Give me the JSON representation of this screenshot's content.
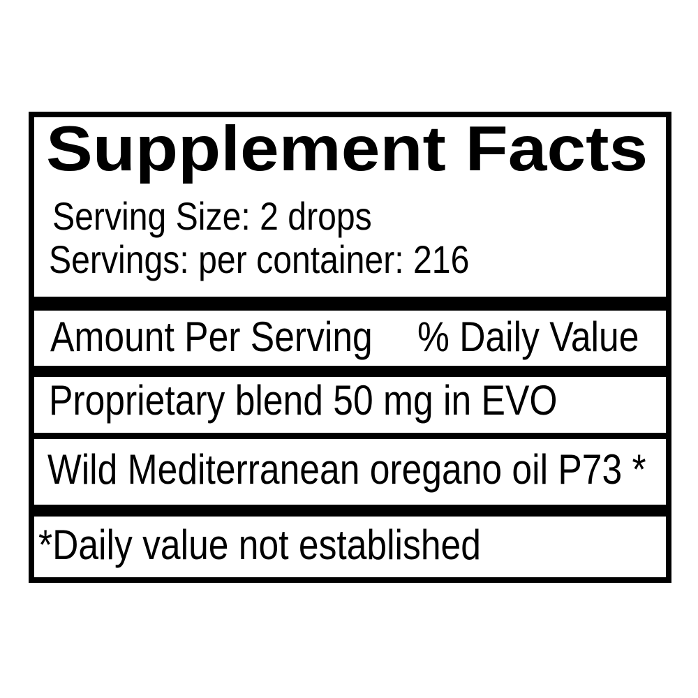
{
  "label": {
    "title": "Supplement Facts",
    "serving_size": "Serving Size: 2 drops",
    "servings_per_container": "Servings: per container: 216",
    "header": {
      "amount": "Amount Per Serving",
      "daily_value": "% Daily Value"
    },
    "rows": [
      "Proprietary blend 50 mg in EVO",
      "Wild Mediterranean oregano oil P73 *"
    ],
    "footnote": "*Daily value not established"
  }
}
